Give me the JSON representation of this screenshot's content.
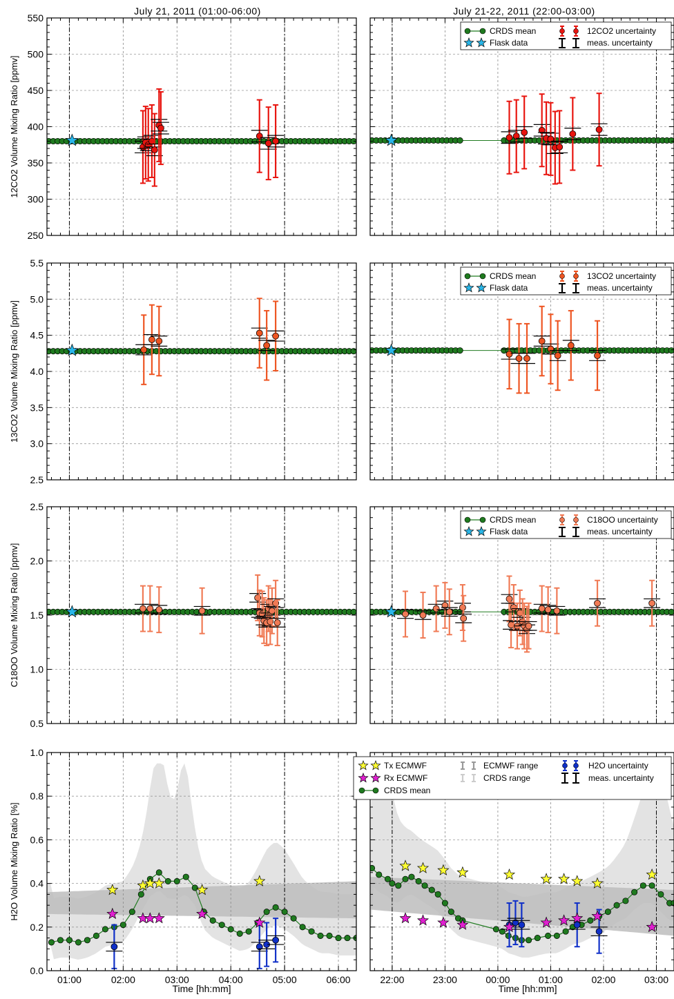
{
  "columns": {
    "left": {
      "title": "July 21, 2011 (01:00-06:00)"
    },
    "right": {
      "title": "July 21-22, 2011 (22:00-03:00)"
    }
  },
  "xlabel": "Time [hh:mm]",
  "colors": {
    "crds": "#1f7a1f",
    "flask": "#29b6e8",
    "co2_12": "#e8150f",
    "co2_13": "#ee5522",
    "c18oo": "#f07a55",
    "h2o": "#1030c8",
    "tx": "#ffff33",
    "rx": "#e020d0",
    "range_dark": "#bdbdbd",
    "range_light": "#e3e3e3"
  },
  "chart_data": [
    {
      "type": "scatter",
      "panel": "12co2",
      "ylabel": "12CO2 Volume Mixing Ratio [ppmv]",
      "ylim": [
        250,
        550
      ],
      "yticks": [
        250,
        300,
        350,
        400,
        450,
        500,
        550
      ],
      "legend": {
        "placement": "top-right",
        "entries": [
          "CRDS mean",
          "12CO2 uncertainty",
          "Flask data",
          "meas. uncertainty"
        ]
      },
      "left": {
        "xlim": [
          "00:35",
          "06:20"
        ],
        "crds_mean": 380,
        "flask": [
          {
            "x": "01:03",
            "y": 381
          }
        ],
        "series": [
          {
            "x": "02:22",
            "y": 372
          },
          {
            "x": "02:25",
            "y": 378
          },
          {
            "x": "02:28",
            "y": 375
          },
          {
            "x": "02:32",
            "y": 380
          },
          {
            "x": "02:35",
            "y": 368
          },
          {
            "x": "02:40",
            "y": 402
          },
          {
            "x": "02:42",
            "y": 398
          },
          {
            "x": "04:32",
            "y": 387
          },
          {
            "x": "04:42",
            "y": 377
          },
          {
            "x": "04:50",
            "y": 380
          }
        ]
      },
      "right": {
        "xlim": [
          "21:35",
          "03:20"
        ],
        "crds_mean": 381,
        "flask": [
          {
            "x": "21:59",
            "y": 381
          }
        ],
        "series": [
          {
            "x": "00:13",
            "y": 385
          },
          {
            "x": "00:21",
            "y": 387
          },
          {
            "x": "00:30",
            "y": 392
          },
          {
            "x": "00:50",
            "y": 395
          },
          {
            "x": "00:55",
            "y": 384
          },
          {
            "x": "01:00",
            "y": 383
          },
          {
            "x": "01:05",
            "y": 371
          },
          {
            "x": "01:10",
            "y": 372
          },
          {
            "x": "01:25",
            "y": 390
          },
          {
            "x": "01:55",
            "y": 396
          }
        ]
      }
    },
    {
      "type": "scatter",
      "panel": "13co2",
      "ylabel": "13CO2 Volume Mixing Ratio [ppmv]",
      "ylim": [
        2.5,
        5.5
      ],
      "yticks": [
        2.5,
        3.0,
        3.5,
        4.0,
        4.5,
        5.0,
        5.5
      ],
      "legend": {
        "placement": "top-right",
        "entries": [
          "CRDS mean",
          "13CO2 uncertainty",
          "Flask data",
          "meas. uncertainty"
        ]
      },
      "left": {
        "xlim": [
          "00:35",
          "06:20"
        ],
        "crds_mean": 4.28,
        "flask": [
          {
            "x": "01:03",
            "y": 4.29
          }
        ],
        "series": [
          {
            "x": "02:23",
            "y": 4.3
          },
          {
            "x": "02:32",
            "y": 4.44
          },
          {
            "x": "02:40",
            "y": 4.42
          },
          {
            "x": "04:32",
            "y": 4.53
          },
          {
            "x": "04:40",
            "y": 4.36
          },
          {
            "x": "04:50",
            "y": 4.49
          }
        ]
      },
      "right": {
        "xlim": [
          "21:35",
          "03:20"
        ],
        "crds_mean": 4.29,
        "flask": [
          {
            "x": "21:59",
            "y": 4.29
          }
        ],
        "series": [
          {
            "x": "00:13",
            "y": 4.24
          },
          {
            "x": "00:24",
            "y": 4.18
          },
          {
            "x": "00:33",
            "y": 4.18
          },
          {
            "x": "00:50",
            "y": 4.42
          },
          {
            "x": "01:00",
            "y": 4.31
          },
          {
            "x": "01:08",
            "y": 4.22
          },
          {
            "x": "01:23",
            "y": 4.36
          },
          {
            "x": "01:53",
            "y": 4.22
          }
        ]
      }
    },
    {
      "type": "scatter",
      "panel": "c18oo",
      "ylabel": "C18OO Volume Mixing Ratio [ppmv]",
      "ylim": [
        0.5,
        2.5
      ],
      "yticks": [
        0.5,
        1.0,
        1.5,
        2.0,
        2.5
      ],
      "legend": {
        "placement": "top-right",
        "entries": [
          "CRDS mean",
          "C18OO uncertainty",
          "Flask data",
          "meas. uncertainty"
        ]
      },
      "left": {
        "xlim": [
          "00:35",
          "06:20"
        ],
        "crds_mean": 1.53,
        "flask": [
          {
            "x": "01:03",
            "y": 1.53
          }
        ],
        "series": [
          {
            "x": "02:22",
            "y": 1.56
          },
          {
            "x": "02:30",
            "y": 1.56
          },
          {
            "x": "02:40",
            "y": 1.55
          },
          {
            "x": "03:28",
            "y": 1.54
          },
          {
            "x": "04:30",
            "y": 1.66
          },
          {
            "x": "04:32",
            "y": 1.52
          },
          {
            "x": "04:35",
            "y": 1.51
          },
          {
            "x": "04:37",
            "y": 1.45
          },
          {
            "x": "04:40",
            "y": 1.43
          },
          {
            "x": "04:42",
            "y": 1.56
          },
          {
            "x": "04:44",
            "y": 1.44
          },
          {
            "x": "04:46",
            "y": 1.54
          },
          {
            "x": "04:50",
            "y": 1.61
          },
          {
            "x": "04:52",
            "y": 1.43
          }
        ]
      },
      "right": {
        "xlim": [
          "21:35",
          "03:20"
        ],
        "crds_mean": 1.53,
        "flask": [
          {
            "x": "21:59",
            "y": 1.53
          }
        ],
        "series": [
          {
            "x": "22:15",
            "y": 1.51
          },
          {
            "x": "22:35",
            "y": 1.5
          },
          {
            "x": "22:50",
            "y": 1.56
          },
          {
            "x": "23:00",
            "y": 1.59
          },
          {
            "x": "23:05",
            "y": 1.53
          },
          {
            "x": "23:20",
            "y": 1.57
          },
          {
            "x": "23:21",
            "y": 1.47
          },
          {
            "x": "00:13",
            "y": 1.65
          },
          {
            "x": "00:15",
            "y": 1.41
          },
          {
            "x": "00:18",
            "y": 1.57
          },
          {
            "x": "00:22",
            "y": 1.4
          },
          {
            "x": "00:25",
            "y": 1.52
          },
          {
            "x": "00:28",
            "y": 1.44
          },
          {
            "x": "00:30",
            "y": 1.4
          },
          {
            "x": "00:33",
            "y": 1.37
          },
          {
            "x": "00:35",
            "y": 1.4
          },
          {
            "x": "00:50",
            "y": 1.56
          },
          {
            "x": "00:57",
            "y": 1.55
          },
          {
            "x": "01:07",
            "y": 1.54
          },
          {
            "x": "01:53",
            "y": 1.61
          },
          {
            "x": "02:55",
            "y": 1.61
          }
        ]
      }
    },
    {
      "type": "line",
      "panel": "h2o",
      "ylabel": "H2O Volume Mixing Ratio [%]",
      "ylim": [
        0.0,
        1.0
      ],
      "yticks": [
        0.0,
        0.2,
        0.4,
        0.6,
        0.8,
        1.0
      ],
      "legend": {
        "placement": "top-right",
        "entries": [
          "Tx ECMWF",
          "ECMWF range",
          "H2O uncertainty",
          "Rx ECMWF",
          "CRDS range",
          "meas. uncertainty",
          "CRDS mean"
        ]
      },
      "left": {
        "xlim": [
          "00:35",
          "06:20"
        ],
        "xticks": [
          "01:00",
          "02:00",
          "03:00",
          "04:00",
          "05:00",
          "06:00"
        ],
        "crds_mean": [
          {
            "x": "00:40",
            "y": 0.13
          },
          {
            "x": "00:50",
            "y": 0.14
          },
          {
            "x": "01:00",
            "y": 0.14
          },
          {
            "x": "01:10",
            "y": 0.13
          },
          {
            "x": "01:20",
            "y": 0.14
          },
          {
            "x": "01:30",
            "y": 0.16
          },
          {
            "x": "01:40",
            "y": 0.19
          },
          {
            "x": "01:50",
            "y": 0.2
          },
          {
            "x": "02:00",
            "y": 0.21
          },
          {
            "x": "02:10",
            "y": 0.27
          },
          {
            "x": "02:20",
            "y": 0.35
          },
          {
            "x": "02:30",
            "y": 0.42
          },
          {
            "x": "02:40",
            "y": 0.45
          },
          {
            "x": "02:50",
            "y": 0.41
          },
          {
            "x": "03:00",
            "y": 0.41
          },
          {
            "x": "03:10",
            "y": 0.43
          },
          {
            "x": "03:20",
            "y": 0.38
          },
          {
            "x": "03:30",
            "y": 0.27
          },
          {
            "x": "03:40",
            "y": 0.23
          },
          {
            "x": "03:50",
            "y": 0.21
          },
          {
            "x": "04:00",
            "y": 0.19
          },
          {
            "x": "04:10",
            "y": 0.17
          },
          {
            "x": "04:20",
            "y": 0.18
          },
          {
            "x": "04:30",
            "y": 0.22
          },
          {
            "x": "04:40",
            "y": 0.27
          },
          {
            "x": "04:50",
            "y": 0.29
          },
          {
            "x": "05:00",
            "y": 0.27
          },
          {
            "x": "05:10",
            "y": 0.24
          },
          {
            "x": "05:20",
            "y": 0.2
          },
          {
            "x": "05:30",
            "y": 0.18
          },
          {
            "x": "05:40",
            "y": 0.16
          },
          {
            "x": "05:50",
            "y": 0.16
          },
          {
            "x": "06:00",
            "y": 0.15
          },
          {
            "x": "06:10",
            "y": 0.15
          },
          {
            "x": "06:20",
            "y": 0.15
          }
        ],
        "tx_ecmwf": [
          {
            "x": "01:48",
            "y": 0.37
          },
          {
            "x": "02:22",
            "y": 0.39
          },
          {
            "x": "02:30",
            "y": 0.4
          },
          {
            "x": "02:40",
            "y": 0.4
          },
          {
            "x": "03:28",
            "y": 0.37
          },
          {
            "x": "04:32",
            "y": 0.41
          }
        ],
        "rx_ecmwf": [
          {
            "x": "01:48",
            "y": 0.26
          },
          {
            "x": "02:22",
            "y": 0.24
          },
          {
            "x": "02:30",
            "y": 0.24
          },
          {
            "x": "02:40",
            "y": 0.24
          },
          {
            "x": "03:28",
            "y": 0.26
          },
          {
            "x": "04:32",
            "y": 0.22
          }
        ],
        "h2o_uncertainty": [
          {
            "x": "01:50",
            "y": 0.11
          },
          {
            "x": "04:32",
            "y": 0.11
          },
          {
            "x": "04:40",
            "y": 0.12
          },
          {
            "x": "04:50",
            "y": 0.14
          }
        ]
      },
      "right": {
        "xlim": [
          "21:35",
          "03:20"
        ],
        "xticks": [
          "22:00",
          "23:00",
          "00:00",
          "01:00",
          "02:00",
          "03:00"
        ],
        "crds_mean": [
          {
            "x": "21:37",
            "y": 0.47
          },
          {
            "x": "21:45",
            "y": 0.44
          },
          {
            "x": "21:55",
            "y": 0.42
          },
          {
            "x": "22:00",
            "y": 0.4
          },
          {
            "x": "22:07",
            "y": 0.39
          },
          {
            "x": "22:15",
            "y": 0.42
          },
          {
            "x": "22:22",
            "y": 0.43
          },
          {
            "x": "22:30",
            "y": 0.41
          },
          {
            "x": "22:37",
            "y": 0.39
          },
          {
            "x": "22:45",
            "y": 0.37
          },
          {
            "x": "22:52",
            "y": 0.35
          },
          {
            "x": "23:00",
            "y": 0.31
          },
          {
            "x": "23:07",
            "y": 0.27
          },
          {
            "x": "23:15",
            "y": 0.24
          },
          {
            "x": "23:20",
            "y": 0.23
          },
          {
            "x": "23:58",
            "y": 0.19
          },
          {
            "x": "00:05",
            "y": 0.18
          },
          {
            "x": "00:12",
            "y": 0.16
          },
          {
            "x": "00:20",
            "y": 0.15
          },
          {
            "x": "00:27",
            "y": 0.14
          },
          {
            "x": "00:35",
            "y": 0.14
          },
          {
            "x": "00:45",
            "y": 0.15
          },
          {
            "x": "00:57",
            "y": 0.16
          },
          {
            "x": "01:07",
            "y": 0.16
          },
          {
            "x": "01:17",
            "y": 0.18
          },
          {
            "x": "01:25",
            "y": 0.2
          },
          {
            "x": "01:35",
            "y": 0.21
          },
          {
            "x": "01:45",
            "y": 0.23
          },
          {
            "x": "01:55",
            "y": 0.25
          },
          {
            "x": "02:05",
            "y": 0.27
          },
          {
            "x": "02:15",
            "y": 0.3
          },
          {
            "x": "02:25",
            "y": 0.32
          },
          {
            "x": "02:35",
            "y": 0.36
          },
          {
            "x": "02:45",
            "y": 0.39
          },
          {
            "x": "02:55",
            "y": 0.39
          },
          {
            "x": "03:05",
            "y": 0.35
          },
          {
            "x": "03:15",
            "y": 0.31
          },
          {
            "x": "03:20",
            "y": 0.31
          }
        ],
        "tx_ecmwf": [
          {
            "x": "22:15",
            "y": 0.48
          },
          {
            "x": "22:35",
            "y": 0.47
          },
          {
            "x": "22:58",
            "y": 0.46
          },
          {
            "x": "23:20",
            "y": 0.45
          },
          {
            "x": "00:13",
            "y": 0.44
          },
          {
            "x": "00:55",
            "y": 0.42
          },
          {
            "x": "01:15",
            "y": 0.42
          },
          {
            "x": "01:30",
            "y": 0.41
          },
          {
            "x": "01:53",
            "y": 0.4
          },
          {
            "x": "02:55",
            "y": 0.44
          }
        ],
        "rx_ecmwf": [
          {
            "x": "22:15",
            "y": 0.24
          },
          {
            "x": "22:35",
            "y": 0.23
          },
          {
            "x": "22:58",
            "y": 0.22
          },
          {
            "x": "23:20",
            "y": 0.21
          },
          {
            "x": "00:13",
            "y": 0.2
          },
          {
            "x": "00:55",
            "y": 0.22
          },
          {
            "x": "01:15",
            "y": 0.23
          },
          {
            "x": "01:30",
            "y": 0.24
          },
          {
            "x": "01:53",
            "y": 0.25
          },
          {
            "x": "02:55",
            "y": 0.2
          }
        ],
        "h2o_uncertainty": [
          {
            "x": "00:13",
            "y": 0.21
          },
          {
            "x": "00:20",
            "y": 0.22
          },
          {
            "x": "00:27",
            "y": 0.21
          },
          {
            "x": "01:30",
            "y": 0.21
          },
          {
            "x": "01:55",
            "y": 0.18
          }
        ]
      }
    }
  ]
}
